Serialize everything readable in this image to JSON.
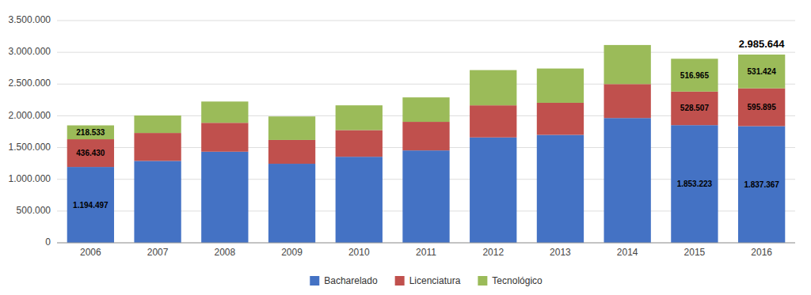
{
  "chart_data": {
    "type": "bar",
    "stacked": true,
    "categories": [
      "2006",
      "2007",
      "2008",
      "2009",
      "2010",
      "2011",
      "2012",
      "2013",
      "2014",
      "2015",
      "2016"
    ],
    "series": [
      {
        "name": "Bacharelado",
        "color": "#4472C4",
        "values": [
          1194497,
          1290000,
          1435000,
          1245000,
          1355000,
          1455000,
          1660000,
          1700000,
          1965000,
          1853223,
          1837367
        ],
        "value_labels": [
          "1.194.497",
          null,
          null,
          null,
          null,
          null,
          null,
          null,
          null,
          "1.853.223",
          "1.837.367"
        ]
      },
      {
        "name": "Licenciatura",
        "color": "#C0504D",
        "values": [
          436430,
          440000,
          455000,
          375000,
          420000,
          450000,
          505000,
          505000,
          535000,
          528507,
          595895
        ],
        "value_labels": [
          "436.430",
          null,
          null,
          null,
          null,
          null,
          null,
          null,
          null,
          "528.507",
          "595.895"
        ]
      },
      {
        "name": "Tecnológico",
        "color": "#9BBB59",
        "values": [
          218533,
          275000,
          335000,
          370000,
          390000,
          385000,
          555000,
          540000,
          615000,
          516965,
          531424
        ],
        "value_labels": [
          "218.533",
          null,
          null,
          null,
          null,
          null,
          null,
          null,
          null,
          "516.965",
          "531.424"
        ]
      }
    ],
    "data_labels": true,
    "annotations": [
      {
        "text": "2.985.644",
        "category": "2016",
        "value": 2985644
      }
    ],
    "ylim": [
      0,
      3500000
    ],
    "yticks": [
      0,
      {
        "value": 500000,
        "label": "500.000"
      },
      {
        "value": 1000000,
        "label": "1.000.000"
      },
      {
        "value": 1500000,
        "label": "1.500.000"
      },
      {
        "value": 2000000,
        "label": "2.000.000"
      },
      {
        "value": 2500000,
        "label": "2.500.000"
      },
      {
        "value": 3000000,
        "label": "3.000.000"
      },
      {
        "value": 3500000,
        "label": "3.500.000"
      }
    ],
    "grid": true,
    "legend": "bottom"
  }
}
